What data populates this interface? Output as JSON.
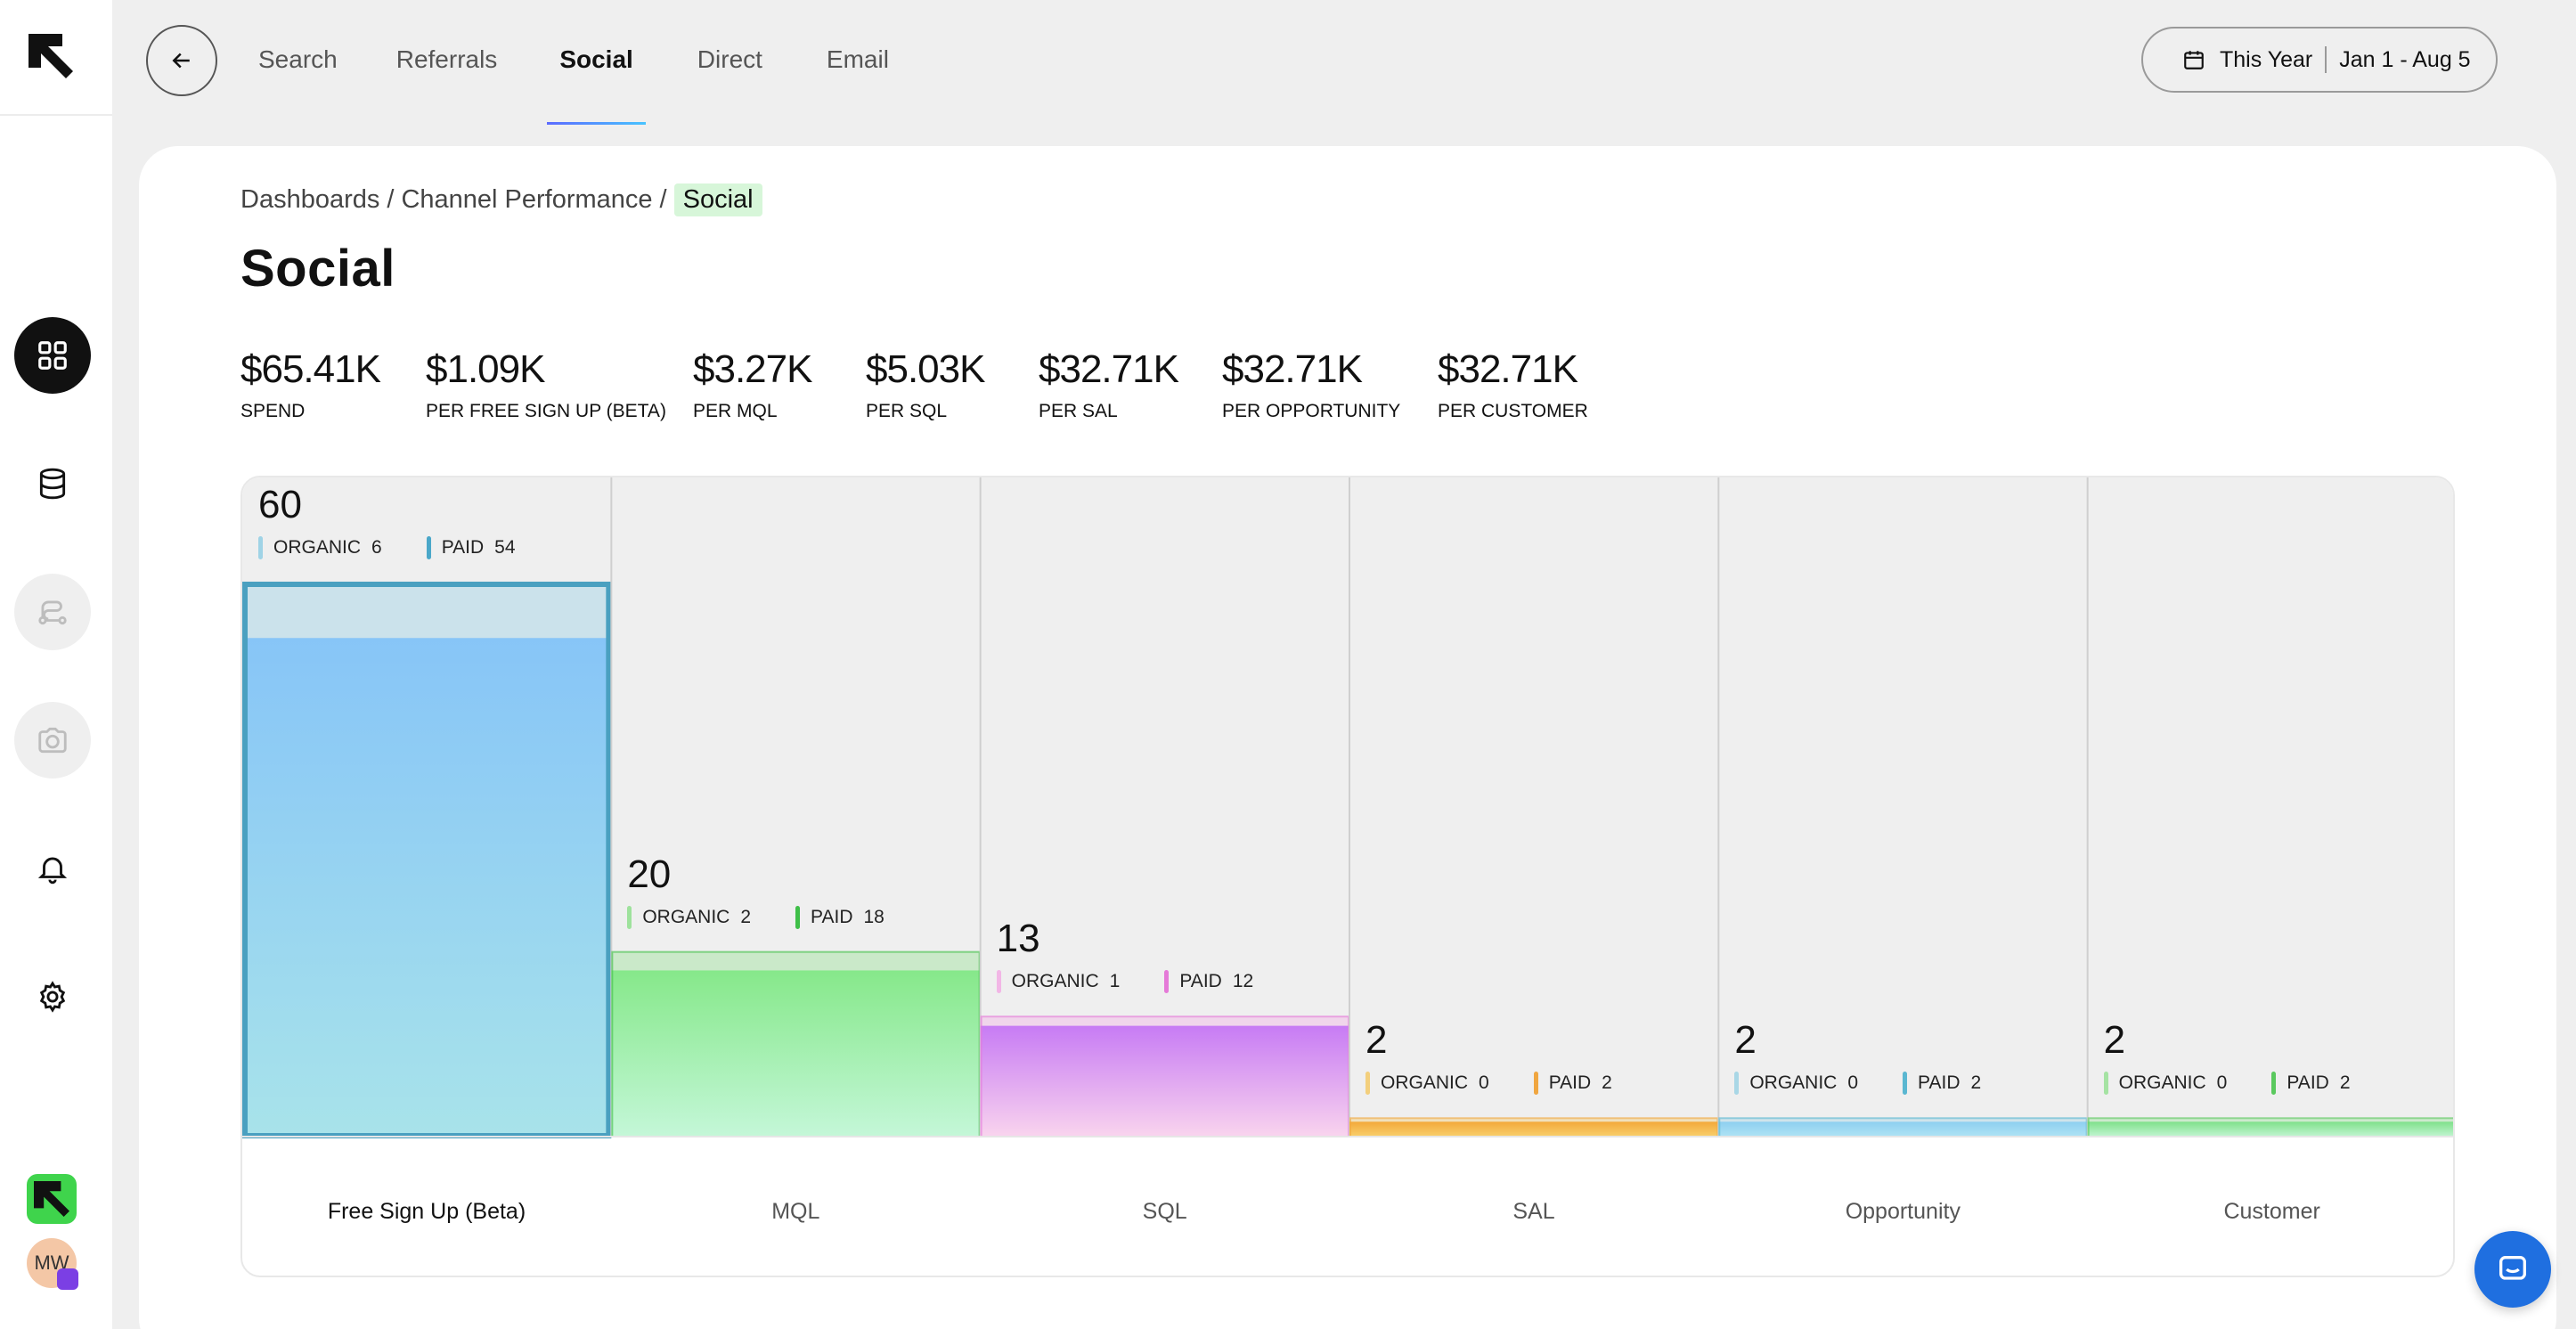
{
  "nav": {
    "tabs": [
      "Search",
      "Referrals",
      "Social",
      "Direct",
      "Email"
    ],
    "active_tab": "Social",
    "date_range": {
      "preset": "This Year",
      "range": "Jan 1 - Aug 5"
    }
  },
  "sidebar": {
    "items": [
      "dashboard-grid-icon",
      "database-icon",
      "route-icon",
      "camera-icon",
      "bell-icon",
      "gear-icon"
    ],
    "active_item": "dashboard-grid-icon",
    "avatar_initials": "MW"
  },
  "breadcrumb": {
    "items": [
      "Dashboards",
      "Channel Performance"
    ],
    "current": "Social"
  },
  "page_title": "Social",
  "metrics": [
    {
      "value": "$65.41K",
      "label": "SPEND"
    },
    {
      "value": "$1.09K",
      "label": "PER FREE SIGN UP (BETA)"
    },
    {
      "value": "$3.27K",
      "label": "PER MQL"
    },
    {
      "value": "$5.03K",
      "label": "PER SQL"
    },
    {
      "value": "$32.71K",
      "label": "PER SAL"
    },
    {
      "value": "$32.71K",
      "label": "PER OPPORTUNITY"
    },
    {
      "value": "$32.71K",
      "label": "PER CUSTOMER"
    }
  ],
  "legend_labels": {
    "organic": "ORGANIC",
    "paid": "PAID"
  },
  "chart_data": {
    "type": "bar",
    "categories": [
      "Free Sign Up (Beta)",
      "MQL",
      "SQL",
      "SAL",
      "Opportunity",
      "Customer"
    ],
    "totals": [
      60,
      20,
      13,
      2,
      2,
      2
    ],
    "series": [
      {
        "name": "ORGANIC",
        "values": [
          6,
          2,
          1,
          0,
          0,
          0
        ]
      },
      {
        "name": "PAID",
        "values": [
          54,
          18,
          12,
          2,
          2,
          2
        ]
      }
    ],
    "ylim": [
      0,
      60
    ],
    "selected_category": "Free Sign Up (Beta)",
    "stage_colors": [
      {
        "organic": "#9fd3e6",
        "paid": "#4aa7c9",
        "fill_top": "#87c5f7",
        "fill_bottom": "#a8e3ea"
      },
      {
        "organic": "#9ee29c",
        "paid": "#3fbf48",
        "fill_top": "#86e88a",
        "fill_bottom": "#c4f7d8"
      },
      {
        "organic": "#f2b6e6",
        "paid": "#e57ad8",
        "fill_top": "#c77bf4",
        "fill_bottom": "#f9d4ee"
      },
      {
        "organic": "#f3cf7d",
        "paid": "#f0a640",
        "fill_top": "#f3a93a",
        "fill_bottom": "#f8cf6d"
      },
      {
        "organic": "#a9d7e6",
        "paid": "#5ab7d1",
        "fill_top": "#8ecff0",
        "fill_bottom": "#aee3f4"
      },
      {
        "organic": "#a5e3a3",
        "paid": "#5ac95e",
        "fill_top": "#7fe08a",
        "fill_bottom": "#c2f5d2"
      }
    ]
  }
}
